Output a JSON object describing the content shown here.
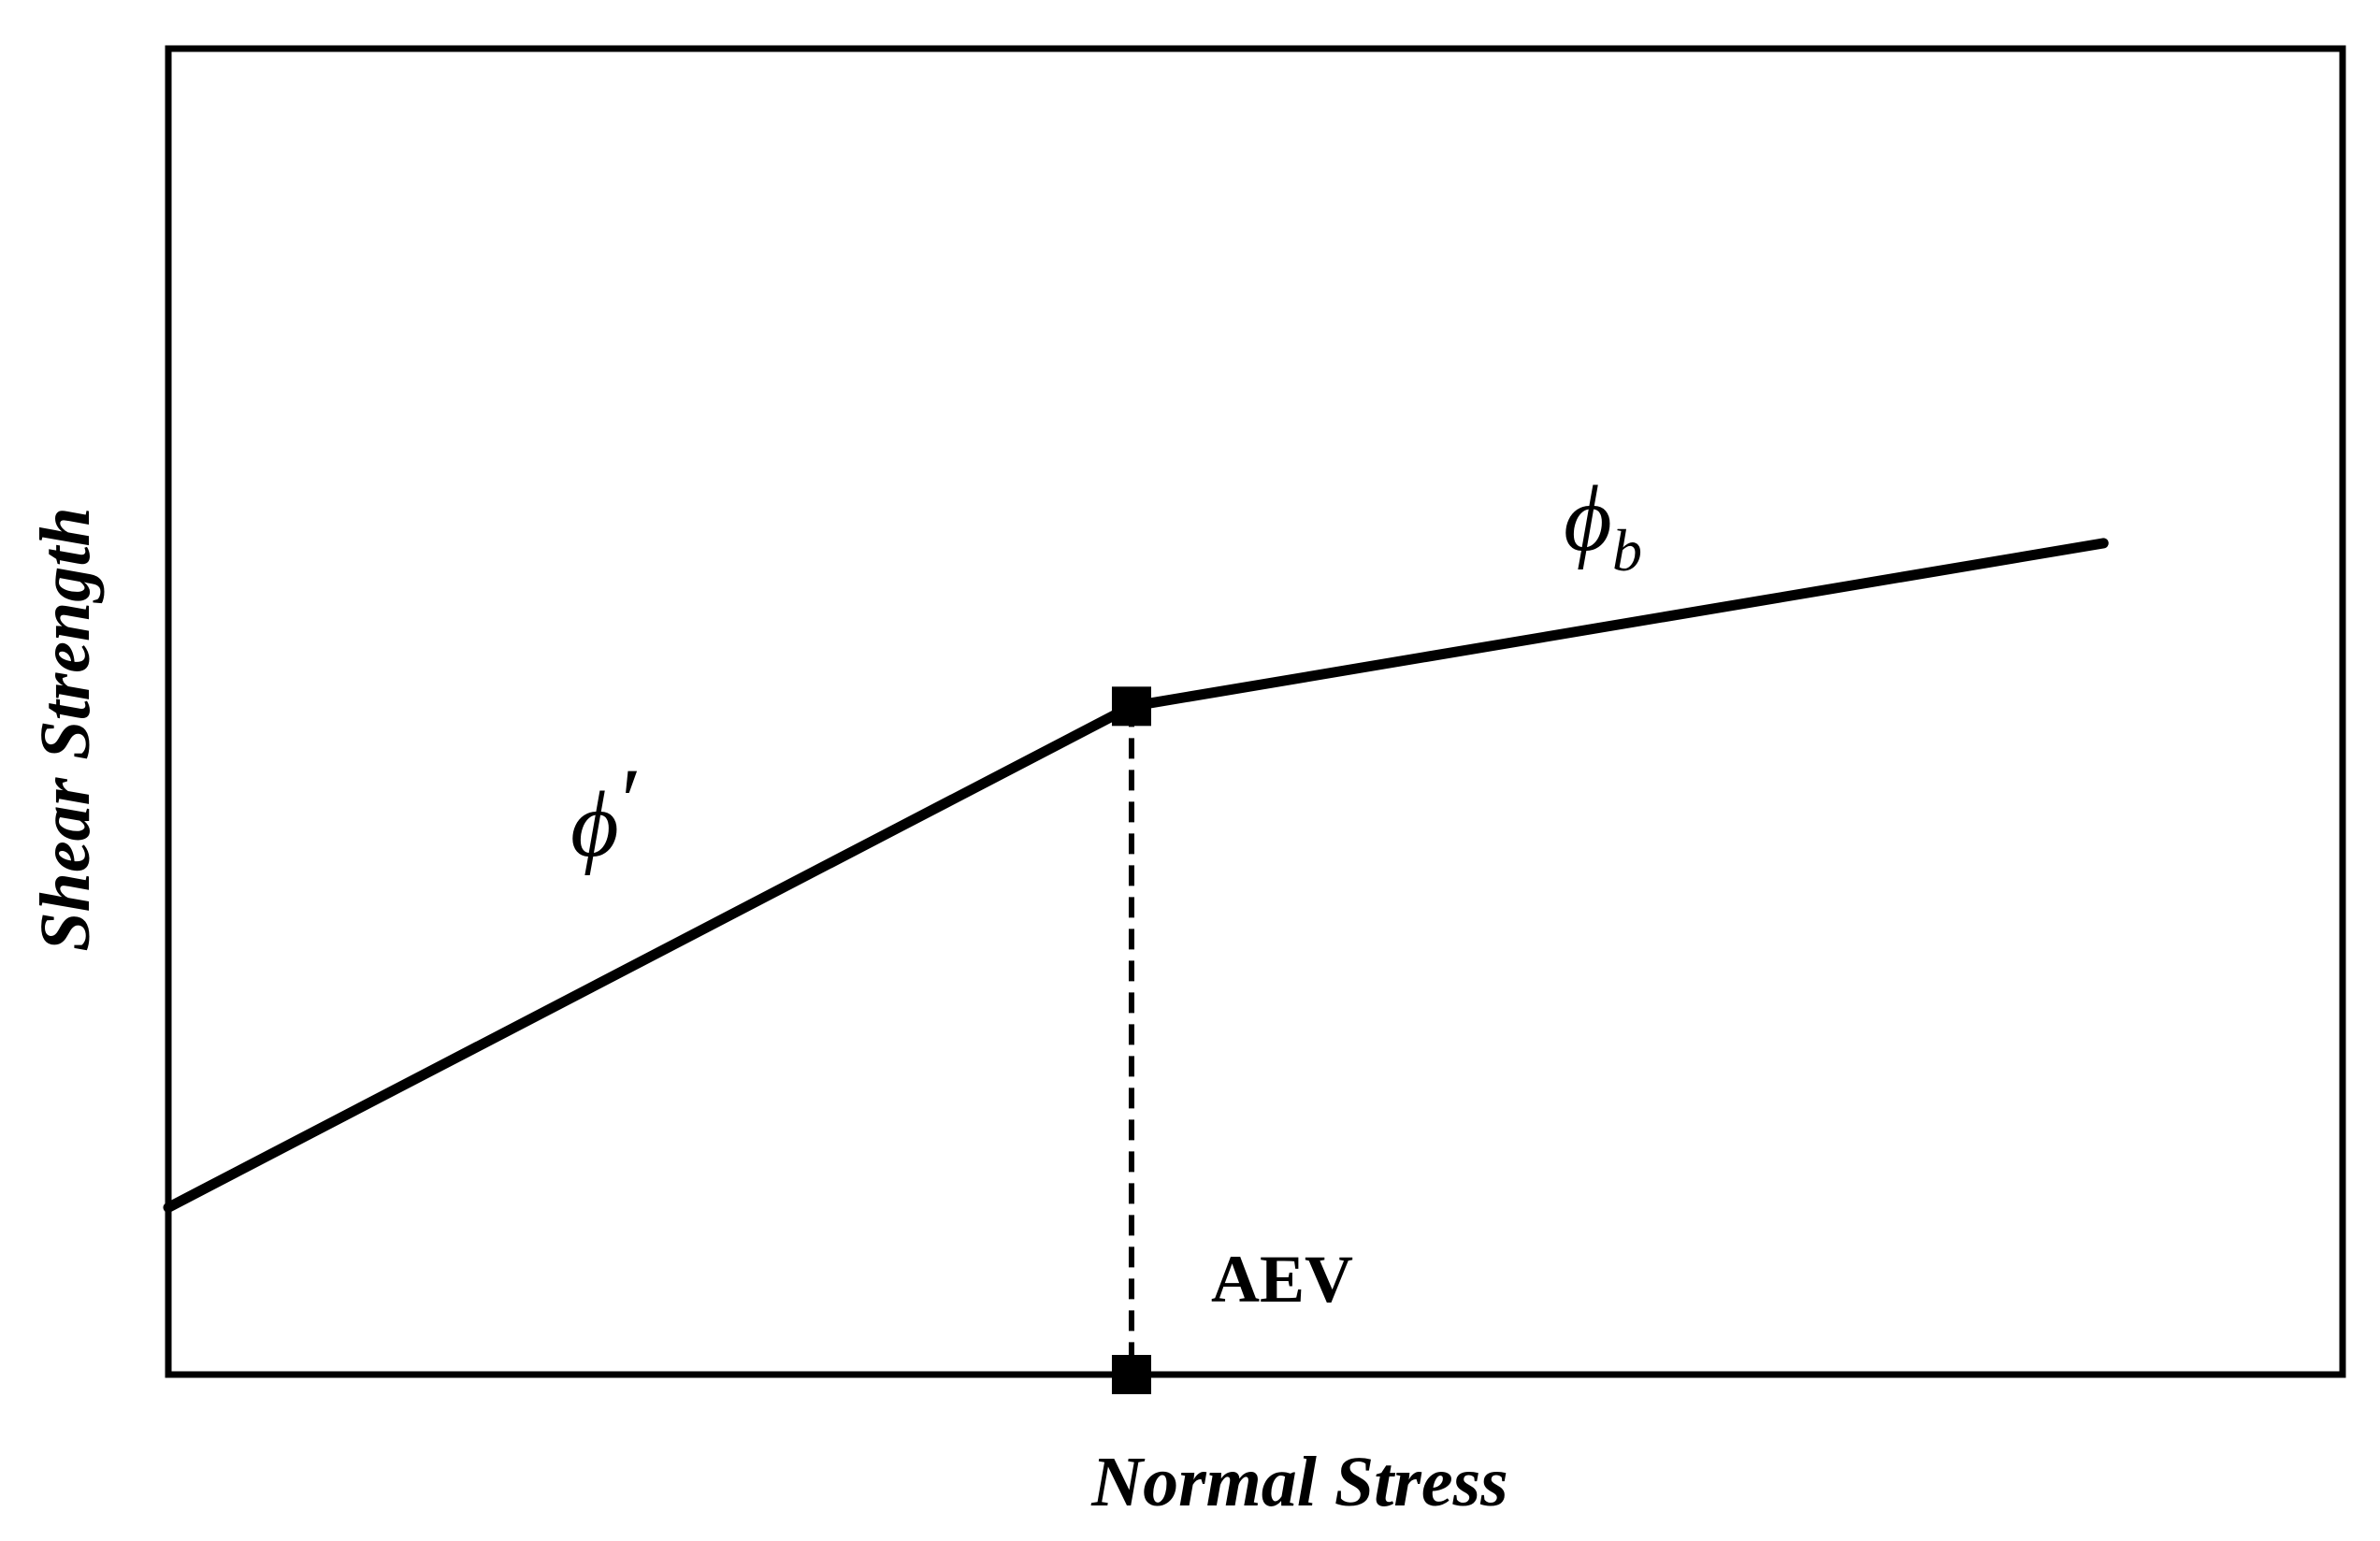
{
  "chart_data": {
    "type": "line",
    "xlabel": "Normal Stress",
    "ylabel": "Shear Strength",
    "xlim": [
      0,
      100
    ],
    "ylim": [
      0,
      100
    ],
    "grid": false,
    "series": [
      {
        "x": [
          0,
          44.3,
          89
        ],
        "y": [
          12.6,
          50.4,
          62.7
        ]
      }
    ],
    "break_point": {
      "x": 44.3,
      "y": 50.4
    },
    "aev_marker": {
      "x": 44.3,
      "y": 0
    },
    "annotations": {
      "aev": "AEV",
      "phi_prime_symbol": "ϕ",
      "phi_prime_mark": "′",
      "phi_b_symbol": "ϕ",
      "phi_b_subscript": "b"
    },
    "colors": {
      "line": "#000000",
      "frame": "#000000"
    }
  }
}
